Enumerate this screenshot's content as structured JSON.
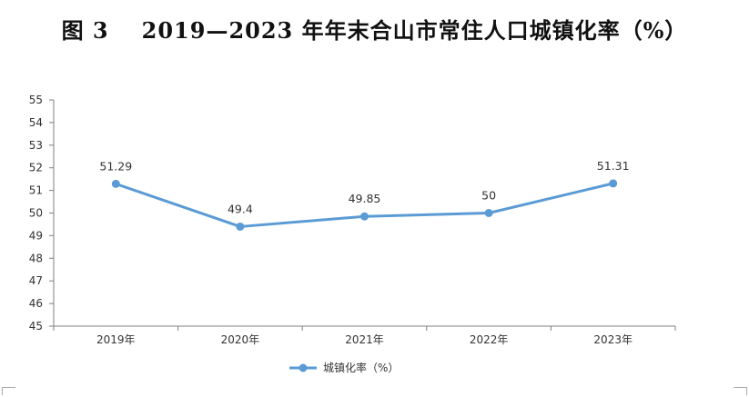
{
  "title": {
    "figure_label": "图 3",
    "text": "2019—2023 年年末合山市常住人口城镇化率（%）"
  },
  "chart_data": {
    "type": "line",
    "title": "2019—2023 年年末合山市常住人口城镇化率（%）",
    "categories": [
      "2019年",
      "2020年",
      "2021年",
      "2022年",
      "2023年"
    ],
    "series": [
      {
        "name": "城镇化率（%）",
        "values": [
          51.29,
          49.4,
          49.85,
          50,
          51.31
        ],
        "labels": [
          "51.29",
          "49.4",
          "49.85",
          "50",
          "51.31"
        ],
        "color": "#5B9BD5"
      }
    ],
    "ylim": [
      45,
      55
    ],
    "yticks": [
      45,
      46,
      47,
      48,
      49,
      50,
      51,
      52,
      53,
      54,
      55
    ],
    "xlabel": "",
    "ylabel": "",
    "grid": false,
    "legend": "bottom-center",
    "axis_color": "#7f7f7f"
  }
}
